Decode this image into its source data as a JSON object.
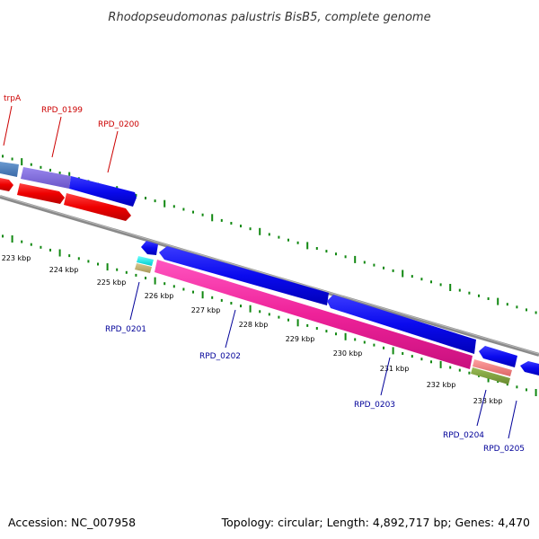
{
  "title": "Rhodopseudomonas palustris BisB5, complete genome",
  "footer": {
    "accession": "Accession: NC_007958",
    "summary": "Topology: circular; Length: 4,892,717 bp; Genes: 4,470"
  },
  "colors": {
    "forward_label": "#cc0000",
    "reverse_label": "#000099",
    "backbone": "#888888",
    "ticks": "#118811"
  },
  "ruler": {
    "unit": "kbp",
    "labels": [
      "223 kbp",
      "224 kbp",
      "225 kbp",
      "226 kbp",
      "227 kbp",
      "228 kbp",
      "229 kbp",
      "230 kbp",
      "231 kbp",
      "232 kbp",
      "233 kbp"
    ]
  },
  "forward_strand": {
    "genes": [
      {
        "label": "trpA",
        "color": "#cc0000"
      },
      {
        "label": "RPD_0199",
        "color": "#cc0000"
      },
      {
        "label": "RPD_0200",
        "color": "#cc0000"
      }
    ]
  },
  "reverse_strand": {
    "genes": [
      {
        "label": "RPD_0201",
        "color": "#000099"
      },
      {
        "label": "RPD_0202",
        "color": "#000099"
      },
      {
        "label": "RPD_0203",
        "color": "#000099"
      },
      {
        "label": "RPD_0204",
        "color": "#000099"
      },
      {
        "label": "RPD_0205",
        "color": "#000099"
      }
    ]
  }
}
